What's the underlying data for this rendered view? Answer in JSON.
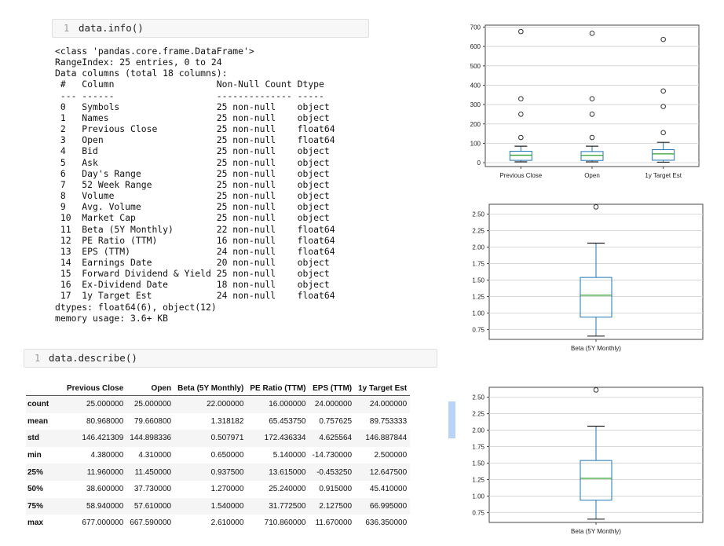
{
  "cell1": {
    "line_no": "1",
    "code": "data.info()"
  },
  "info_output": {
    "header_lines": [
      "<class 'pandas.core.frame.DataFrame'>",
      "RangeIndex: 25 entries, 0 to 24",
      "Data columns (total 18 columns):"
    ],
    "col_headers": {
      "index": "#",
      "column": "Column",
      "count": "Non-Null Count",
      "dtype": "Dtype"
    },
    "separators": {
      "index": "---",
      "column": "------",
      "count": "--------------",
      "dtype": "-----"
    },
    "rows": [
      {
        "idx": "0",
        "name": "Symbols",
        "count": "25 non-null",
        "dtype": "object"
      },
      {
        "idx": "1",
        "name": "Names",
        "count": "25 non-null",
        "dtype": "object"
      },
      {
        "idx": "2",
        "name": "Previous Close",
        "count": "25 non-null",
        "dtype": "float64"
      },
      {
        "idx": "3",
        "name": "Open",
        "count": "25 non-null",
        "dtype": "float64"
      },
      {
        "idx": "4",
        "name": "Bid",
        "count": "25 non-null",
        "dtype": "object"
      },
      {
        "idx": "5",
        "name": "Ask",
        "count": "25 non-null",
        "dtype": "object"
      },
      {
        "idx": "6",
        "name": "Day's Range",
        "count": "25 non-null",
        "dtype": "object"
      },
      {
        "idx": "7",
        "name": "52 Week Range",
        "count": "25 non-null",
        "dtype": "object"
      },
      {
        "idx": "8",
        "name": "Volume",
        "count": "25 non-null",
        "dtype": "object"
      },
      {
        "idx": "9",
        "name": "Avg. Volume",
        "count": "25 non-null",
        "dtype": "object"
      },
      {
        "idx": "10",
        "name": "Market Cap",
        "count": "25 non-null",
        "dtype": "object"
      },
      {
        "idx": "11",
        "name": "Beta (5Y Monthly)",
        "count": "22 non-null",
        "dtype": "float64"
      },
      {
        "idx": "12",
        "name": "PE Ratio (TTM)",
        "count": "16 non-null",
        "dtype": "float64"
      },
      {
        "idx": "13",
        "name": "EPS (TTM)",
        "count": "24 non-null",
        "dtype": "float64"
      },
      {
        "idx": "14",
        "name": "Earnings Date",
        "count": "20 non-null",
        "dtype": "object"
      },
      {
        "idx": "15",
        "name": "Forward Dividend & Yield",
        "count": "25 non-null",
        "dtype": "object"
      },
      {
        "idx": "16",
        "name": "Ex-Dividend Date",
        "count": "18 non-null",
        "dtype": "object"
      },
      {
        "idx": "17",
        "name": "1y Target Est",
        "count": "24 non-null",
        "dtype": "float64"
      }
    ],
    "footer_lines": [
      "dtypes: float64(6), object(12)",
      "memory usage: 3.6+ KB"
    ]
  },
  "cell2": {
    "line_no": "1",
    "code": "data.describe()"
  },
  "describe_table": {
    "columns": [
      "",
      "Previous Close",
      "Open",
      "Beta (5Y Monthly)",
      "PE Ratio (TTM)",
      "EPS (TTM)",
      "1y Target Est"
    ],
    "rows": [
      {
        "label": "count",
        "values": [
          "25.000000",
          "25.000000",
          "22.000000",
          "16.000000",
          "24.000000",
          "24.000000"
        ]
      },
      {
        "label": "mean",
        "values": [
          "80.968000",
          "79.660800",
          "1.318182",
          "65.453750",
          "0.757625",
          "89.753333"
        ]
      },
      {
        "label": "std",
        "values": [
          "146.421309",
          "144.898336",
          "0.507971",
          "172.436334",
          "4.625564",
          "146.887844"
        ]
      },
      {
        "label": "min",
        "values": [
          "4.380000",
          "4.310000",
          "0.650000",
          "5.140000",
          "-14.730000",
          "2.500000"
        ]
      },
      {
        "label": "25%",
        "values": [
          "11.960000",
          "11.450000",
          "0.937500",
          "13.615000",
          "-0.453250",
          "12.647500"
        ]
      },
      {
        "label": "50%",
        "values": [
          "38.600000",
          "37.730000",
          "1.270000",
          "25.240000",
          "0.915000",
          "45.410000"
        ]
      },
      {
        "label": "75%",
        "values": [
          "58.940000",
          "57.610000",
          "1.540000",
          "31.772500",
          "2.127500",
          "66.995000"
        ]
      },
      {
        "label": "max",
        "values": [
          "677.000000",
          "667.590000",
          "2.610000",
          "710.860000",
          "11.670000",
          "636.350000"
        ]
      }
    ]
  },
  "chart_data": [
    {
      "type": "box",
      "categories": [
        "Previous Close",
        "Open",
        "1y Target Est"
      ],
      "ylim": [
        -20,
        710
      ],
      "yticks": [
        0,
        100,
        200,
        300,
        400,
        500,
        600,
        700
      ],
      "grid": true,
      "boxes": [
        {
          "whislo": 4.38,
          "q1": 11.96,
          "med": 38.6,
          "q3": 58.94,
          "whishi": 85,
          "fliers": [
            130,
            250,
            330,
            677
          ]
        },
        {
          "whislo": 4.31,
          "q1": 11.45,
          "med": 37.73,
          "q3": 57.61,
          "whishi": 85,
          "fliers": [
            130,
            250,
            330,
            667.59
          ]
        },
        {
          "whislo": 2.5,
          "q1": 12.6475,
          "med": 45.41,
          "q3": 66.995,
          "whishi": 105,
          "fliers": [
            155,
            290,
            370,
            636.35
          ]
        }
      ]
    },
    {
      "type": "box",
      "categories": [
        "Beta (5Y Monthly)"
      ],
      "ylim": [
        0.6,
        2.65
      ],
      "yticks": [
        0.75,
        1.0,
        1.25,
        1.5,
        1.75,
        2.0,
        2.25,
        2.5
      ],
      "grid": true,
      "boxes": [
        {
          "whislo": 0.65,
          "q1": 0.9375,
          "med": 1.27,
          "q3": 1.54,
          "whishi": 2.06,
          "fliers": [
            2.61
          ]
        }
      ]
    },
    {
      "type": "box",
      "categories": [
        "Beta (5Y Monthly)"
      ],
      "ylim": [
        0.6,
        2.65
      ],
      "yticks": [
        0.75,
        1.0,
        1.25,
        1.5,
        1.75,
        2.0,
        2.25,
        2.5
      ],
      "grid": true,
      "boxes": [
        {
          "whislo": 0.65,
          "q1": 0.9375,
          "med": 1.27,
          "q3": 1.54,
          "whishi": 2.06,
          "fliers": [
            2.61
          ]
        }
      ]
    }
  ],
  "colors": {
    "box": "#1f77b4",
    "median": "#2ca02c",
    "flier": "#333333",
    "grid": "#d8d8d8",
    "selection": "#b9d2f8"
  }
}
